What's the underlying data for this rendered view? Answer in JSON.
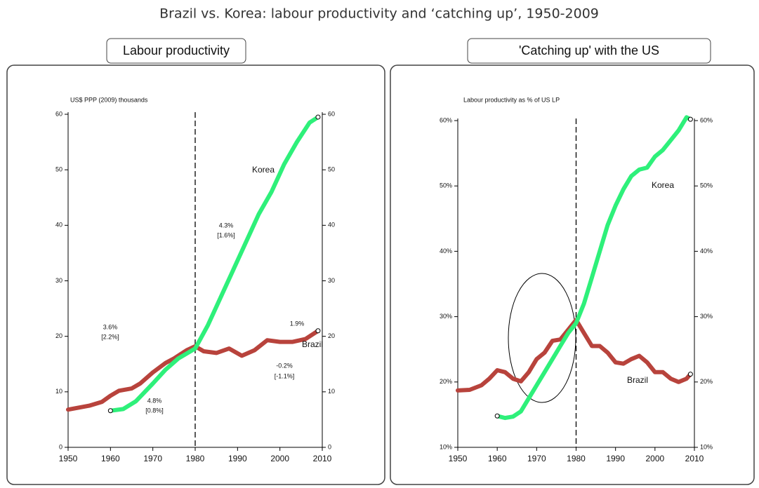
{
  "title": "Brazil vs. Korea: labour productivity and ‘catching up’, 1950-2009",
  "chart_data": [
    {
      "type": "line",
      "title": "Labour productivity",
      "ylabel": "US$ PPP (2009) thousands",
      "xlim": [
        1950,
        2010
      ],
      "xticks": [
        1950,
        1960,
        1970,
        1980,
        1990,
        2000,
        2010
      ],
      "ylim": [
        0,
        60
      ],
      "yticks": [
        0,
        10,
        20,
        30,
        40,
        50,
        60
      ],
      "y2ticks": true,
      "vline": 1980,
      "series": [
        {
          "name": "Brazil",
          "color": "#b8433c",
          "x": [
            1950,
            1955,
            1958,
            1960,
            1962,
            1965,
            1967,
            1970,
            1973,
            1975,
            1978,
            1980,
            1982,
            1985,
            1988,
            1991,
            1994,
            1997,
            2000,
            2003,
            2006,
            2009
          ],
          "values": [
            6.8,
            7.5,
            8.2,
            9.3,
            10.2,
            10.6,
            11.5,
            13.5,
            15.2,
            16,
            17.5,
            18.2,
            17.3,
            17,
            17.8,
            16.5,
            17.5,
            19.3,
            19,
            19,
            19.5,
            21
          ]
        },
        {
          "name": "Korea",
          "color": "#2ef07a",
          "x": [
            1960,
            1963,
            1966,
            1970,
            1973,
            1976,
            1980,
            1983,
            1986,
            1989,
            1992,
            1995,
            1998,
            2001,
            2004,
            2007,
            2009
          ],
          "values": [
            6.6,
            6.9,
            8.3,
            11.5,
            14,
            16,
            17.8,
            22,
            27,
            32,
            37,
            42,
            46,
            51,
            55,
            58.5,
            59.5
          ]
        }
      ],
      "annotations": [
        "3.6%",
        "[2.2%]",
        "4.8%",
        "[0.8%]",
        "4.3%",
        "[1.6%]",
        "-0.2%",
        "[-1.1%]",
        "1.9%"
      ]
    },
    {
      "type": "line",
      "title": "'Catching up' with the US",
      "ylabel": "Labour productivity as % of US LP",
      "xlim": [
        1950,
        2010
      ],
      "xticks": [
        1950,
        1960,
        1970,
        1980,
        1990,
        2000,
        2010
      ],
      "ylim": [
        10,
        60
      ],
      "yticks": [
        {
          "value": 10,
          "label": "10%"
        },
        {
          "value": 20,
          "label": "20%"
        },
        {
          "value": 30,
          "label": "30%"
        },
        {
          "value": 40,
          "label": "40%"
        },
        {
          "value": 50,
          "label": "50%"
        },
        {
          "value": 60,
          "label": "60%"
        }
      ],
      "y2ticks": true,
      "vline": 1980,
      "series": [
        {
          "name": "Brazil",
          "color": "#b8433c",
          "x": [
            1950,
            1953,
            1956,
            1958,
            1960,
            1962,
            1964,
            1966,
            1968,
            1970,
            1972,
            1974,
            1976,
            1978,
            1980,
            1982,
            1984,
            1986,
            1988,
            1990,
            1992,
            1994,
            1996,
            1998,
            2000,
            2002,
            2004,
            2006,
            2008,
            2009
          ],
          "values": [
            18.7,
            18.8,
            19.5,
            20.5,
            21.8,
            21.5,
            20.5,
            20.1,
            21.5,
            23.5,
            24.5,
            26.3,
            26.5,
            28,
            29.5,
            27.5,
            25.5,
            25.5,
            24.5,
            23,
            22.8,
            23.5,
            24,
            23,
            21.5,
            21.5,
            20.5,
            20,
            20.5,
            21.2
          ]
        },
        {
          "name": "Korea",
          "color": "#2ef07a",
          "x": [
            1960,
            1962,
            1964,
            1966,
            1968,
            1970,
            1972,
            1974,
            1976,
            1978,
            1980,
            1982,
            1984,
            1986,
            1988,
            1990,
            1992,
            1994,
            1996,
            1998,
            2000,
            2002,
            2004,
            2006,
            2008,
            2009
          ],
          "values": [
            14.8,
            14.5,
            14.7,
            15.5,
            17.5,
            19.5,
            21.5,
            23.5,
            25.5,
            27.5,
            29,
            32,
            36,
            40,
            44,
            47,
            49.5,
            51.5,
            52.5,
            52.8,
            54.5,
            55.5,
            57,
            58.5,
            60.5,
            60.2
          ]
        }
      ],
      "annotations": []
    }
  ]
}
